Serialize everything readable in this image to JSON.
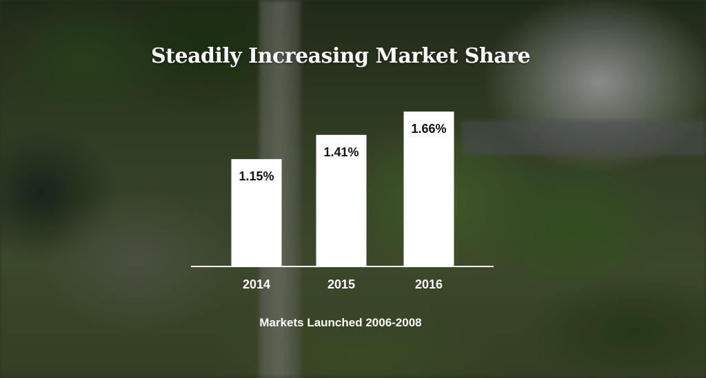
{
  "chart_data": {
    "type": "bar",
    "title": "Steadily Increasing Market Share",
    "subtitle": "Markets Launched 2006-2008",
    "categories": [
      "2014",
      "2015",
      "2016"
    ],
    "values": [
      1.15,
      1.41,
      1.66
    ],
    "value_labels": [
      "1.15%",
      "1.41%",
      "1.66%"
    ],
    "ylim": [
      0,
      1.66
    ],
    "grid": false,
    "bar_color": "#ffffff",
    "value_label_color": "#111111",
    "text_color": "#ffffff"
  }
}
